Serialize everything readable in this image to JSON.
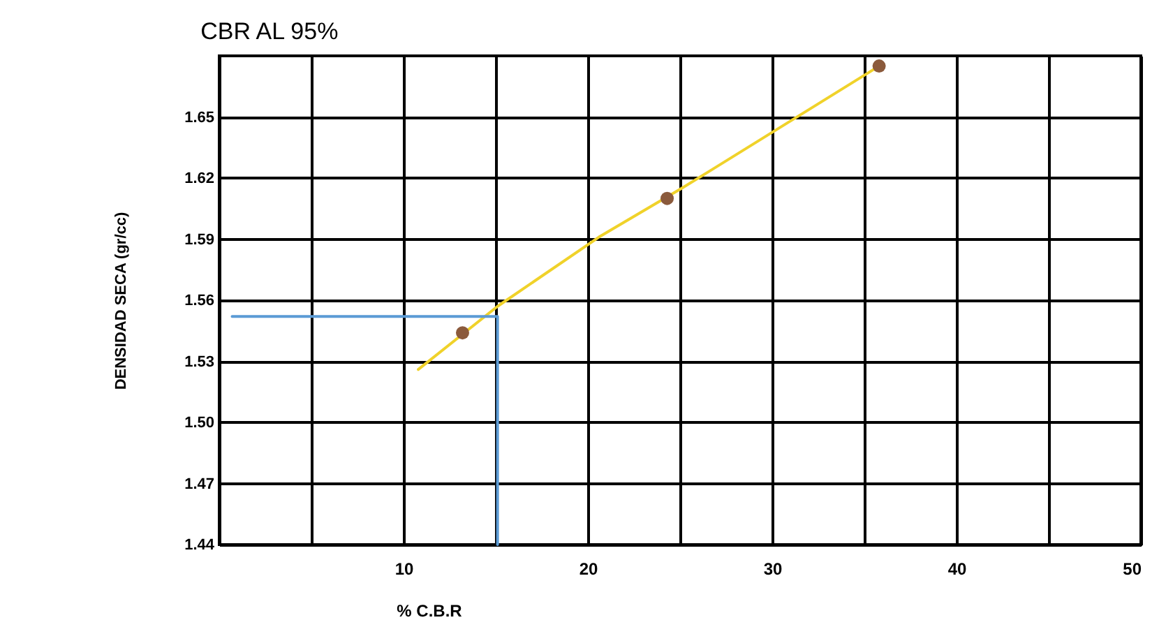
{
  "chart_data": {
    "type": "scatter",
    "title": "CBR AL 95%",
    "xlabel": "% C.B.R",
    "ylabel": "DENSIDAD SECA (gr/cc)",
    "xlim": [
      0,
      50
    ],
    "xticks": [
      {
        "value": 5,
        "label": null
      },
      10,
      {
        "value": 15,
        "label": null
      },
      20,
      {
        "value": 25,
        "label": null
      },
      30,
      {
        "value": 35,
        "label": null
      },
      40,
      {
        "value": 45,
        "label": null
      },
      50
    ],
    "ylim": [
      1.44,
      1.68
    ],
    "yticks": [
      1.44,
      1.47,
      {
        "value": 1.5,
        "label": "1.50"
      },
      1.53,
      1.56,
      1.59,
      1.62,
      1.65
    ],
    "grid": true,
    "series": [
      {
        "type": "line",
        "color": "#f0d22a",
        "x": [
          10.8,
          15.1,
          20.6,
          25.1,
          30.1,
          35.8
        ],
        "values": [
          1.526,
          1.557,
          1.591,
          1.615,
          1.643,
          1.675
        ]
      },
      {
        "type": "line",
        "color": "#5b9bd5",
        "x": [
          0.7,
          15.1,
          15.1
        ],
        "values": [
          1.552,
          1.552,
          1.44
        ]
      },
      {
        "color": "#8b5a3c",
        "marker": "circle",
        "x": [
          13.2,
          24.3,
          35.8
        ],
        "values": [
          1.544,
          1.61,
          1.675
        ]
      }
    ]
  }
}
